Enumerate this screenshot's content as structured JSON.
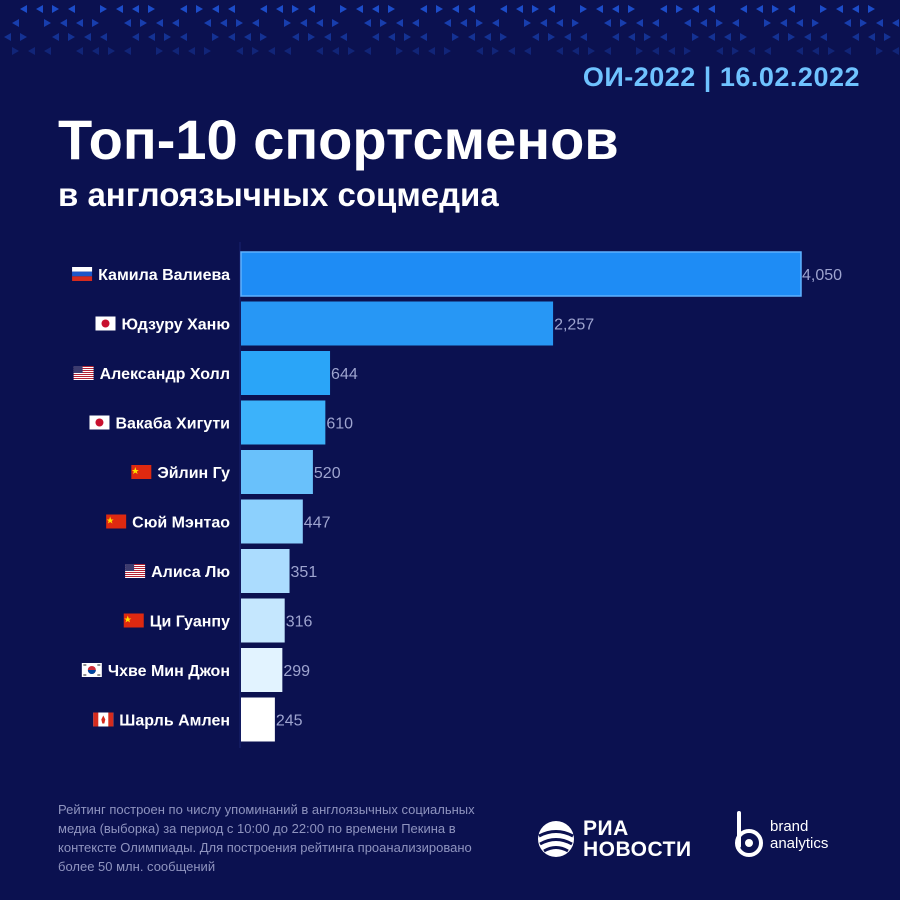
{
  "header": {
    "date": "ОИ-2022 | 16.02.2022"
  },
  "title": "Топ-10 спортсменов",
  "subtitle": "в англоязычных соцмедиа",
  "colors": {
    "background": "#0b1150",
    "pattern": "#1c4cc8",
    "bar_shades": [
      "#1e8cf5",
      "#2797f5",
      "#2aa5f8",
      "#3cb2fa",
      "#69c1fb",
      "#8cd0fd",
      "#abdcfe",
      "#c5e7fe",
      "#e2f3ff",
      "#ffffff"
    ]
  },
  "chart_data": {
    "type": "bar",
    "orientation": "horizontal",
    "title": "Топ-10 спортсменов в англоязычных соцмедиа",
    "categories": [
      "Камила Валиева",
      "Юдзуру Ханю",
      "Александр Холл",
      "Вакаба Хигути",
      "Эйлин Гу",
      "Сюй Мэнтао",
      "Алиса Лю",
      "Ци Гуанпу",
      "Чхве Мин Джон",
      "Шарль Амлен"
    ],
    "flags": [
      "ru-flag-icon",
      "jp-flag-icon",
      "us-flag-icon",
      "jp-flag-icon",
      "cn-flag-icon",
      "cn-flag-icon",
      "us-flag-icon",
      "cn-flag-icon",
      "kr-flag-icon",
      "ca-flag-icon"
    ],
    "values": [
      4050,
      2257,
      644,
      610,
      520,
      447,
      351,
      316,
      299,
      245
    ],
    "value_labels": [
      "4,050",
      "2,257",
      "644",
      "610",
      "520",
      "447",
      "351",
      "316",
      "299",
      "245"
    ],
    "xlim": [
      0,
      4050
    ],
    "xlabel": "",
    "ylabel": "",
    "grid": false
  },
  "footnote": "Рейтинг построен по числу упоминаний в англоязычных социальных медиа (выборка) за период с 10:00 до 22:00 по времени Пекина в контексте Олимпиады. Для построения рейтинга проанализировано более 50 млн. сообщений",
  "logos": {
    "ria_line1": "РИА",
    "ria_line2": "НОВОСТИ",
    "ba_line1": "brand",
    "ba_line2": "analytics"
  }
}
